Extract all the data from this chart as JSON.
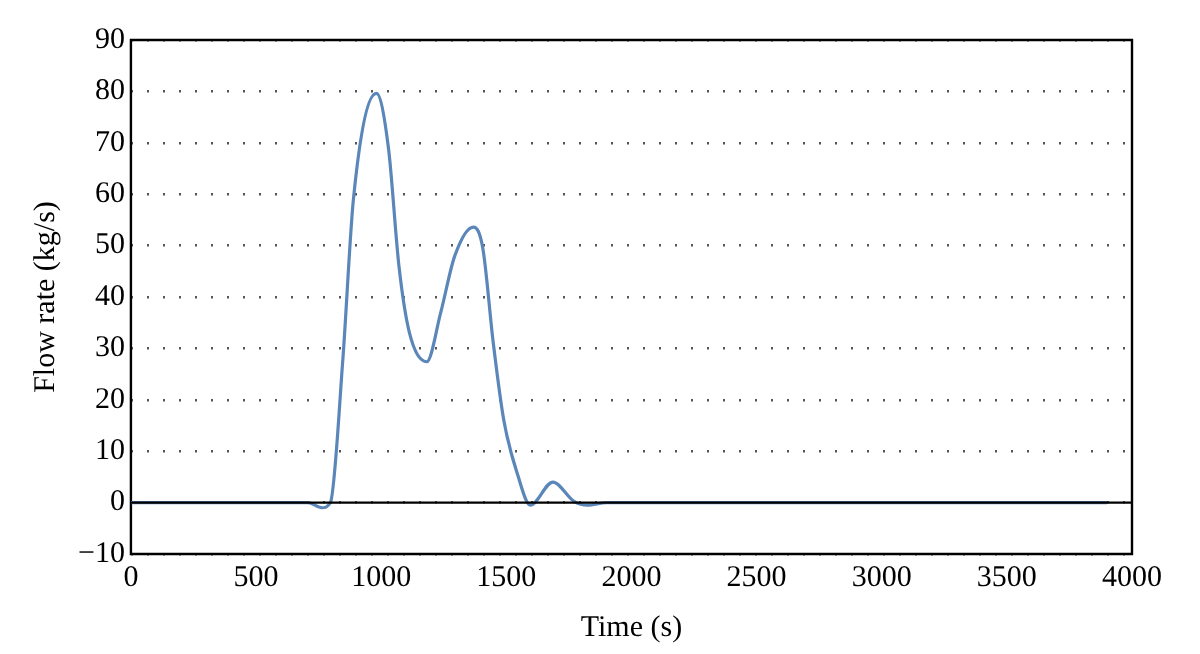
{
  "chart_data": {
    "type": "line",
    "xlabel": "Time (s)",
    "ylabel": "Flow rate (kg/s)",
    "series": [
      {
        "color": "#5b86b9",
        "x": [
          0,
          707,
          763,
          797,
          847,
          889,
          981,
          1029,
          1071,
          1113,
          1182,
          1238,
          1294,
          1369,
          1406,
          1448,
          1490,
          1546,
          1596,
          1686,
          1769,
          1825,
          1900,
          3900
        ],
        "values": [
          0,
          0,
          -1,
          0,
          28,
          59,
          79.6,
          69,
          46,
          33,
          27.4,
          37,
          48,
          53.6,
          49.5,
          31,
          16,
          5.3,
          -0.5,
          4,
          0.3,
          -0.5,
          0,
          0
        ]
      }
    ],
    "xlim": [
      0,
      4000
    ],
    "xticks": [
      0,
      500,
      1000,
      1500,
      2000,
      2500,
      3000,
      3500,
      4000
    ],
    "ylim": [
      -10,
      90
    ],
    "yticks": [
      -10,
      0,
      10,
      20,
      30,
      40,
      50,
      60,
      70,
      80,
      90
    ],
    "grid": "y",
    "legend": false,
    "marker": "none",
    "line_style": "solid",
    "ref_lines": [
      {
        "axis": "y",
        "value": 0,
        "color": "#000000"
      }
    ]
  }
}
